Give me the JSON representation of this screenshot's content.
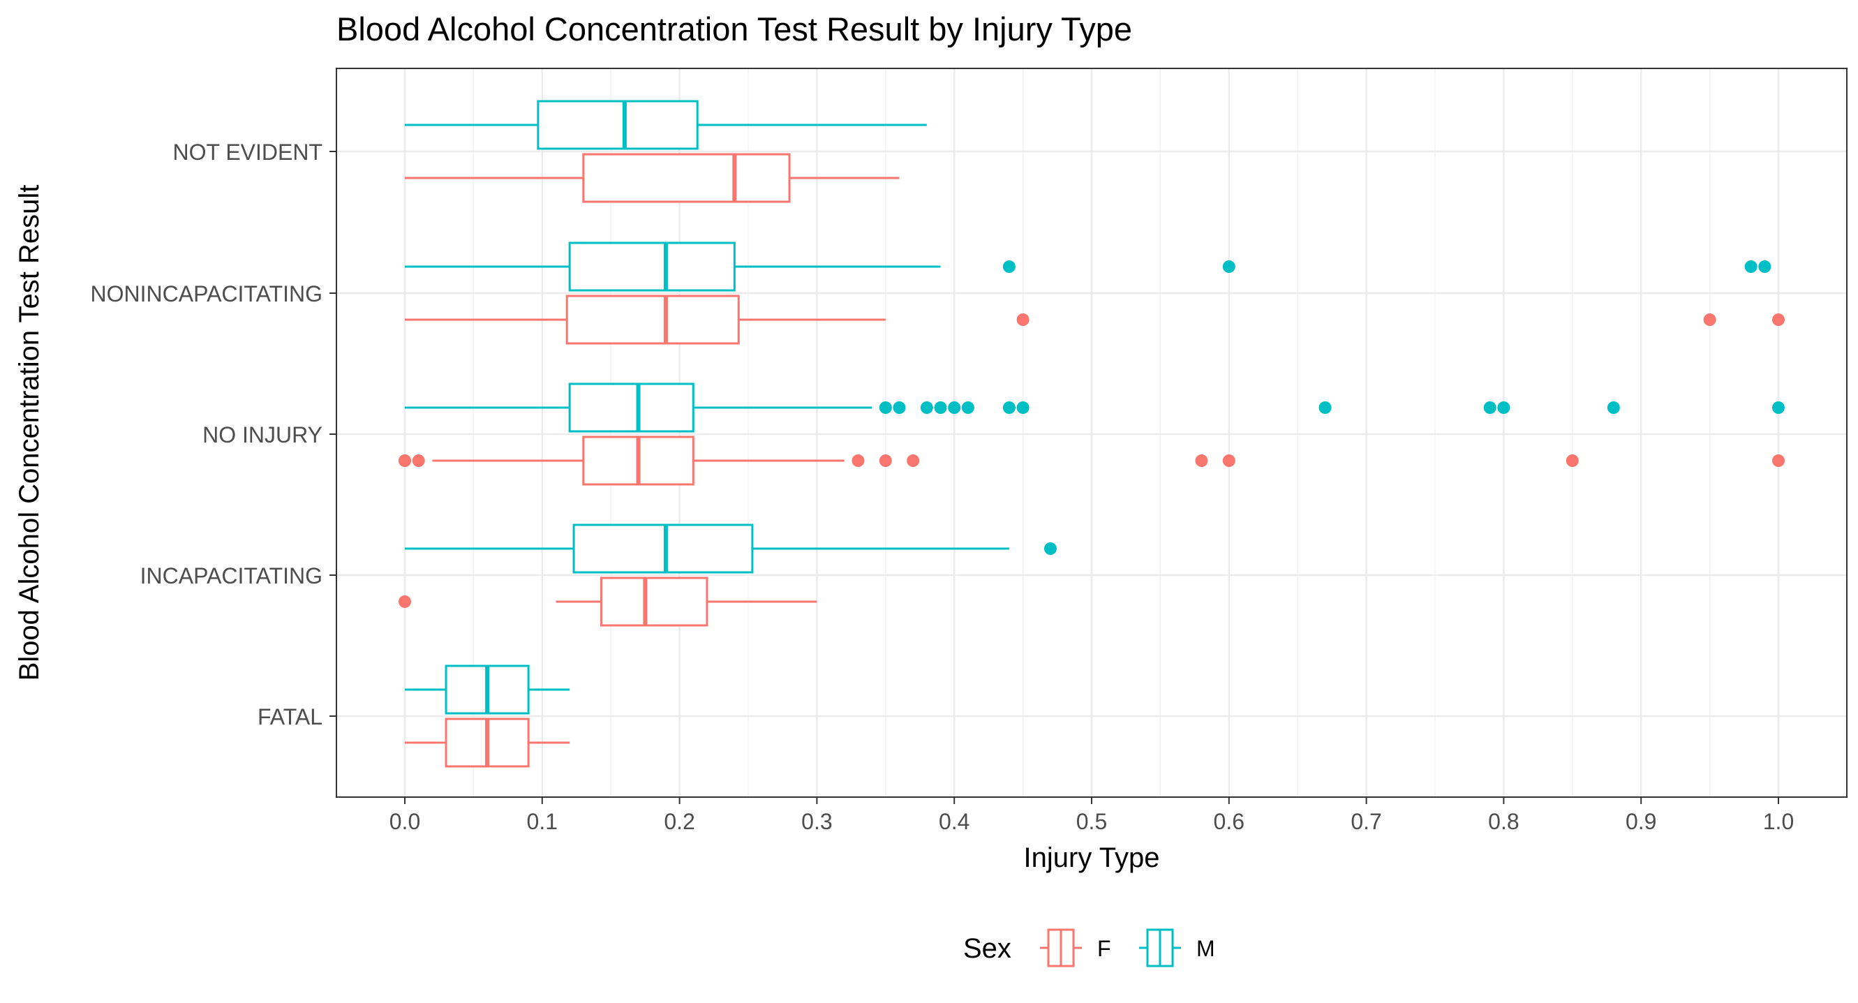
{
  "chart_data": {
    "type": "boxplot",
    "orientation": "horizontal",
    "title": "Blood Alcohol Concentration Test Result by Injury Type",
    "xlabel": "Injury Type",
    "ylabel": "Blood Alcohol Concentration Test Result",
    "xlim": [
      -0.05,
      1.05
    ],
    "xticks": [
      0.0,
      0.1,
      0.2,
      0.3,
      0.4,
      0.5,
      0.6,
      0.7,
      0.8,
      0.9,
      1.0
    ],
    "xtick_labels": [
      "0.0",
      "0.1",
      "0.2",
      "0.3",
      "0.4",
      "0.5",
      "0.6",
      "0.7",
      "0.8",
      "0.9",
      "1.0"
    ],
    "categories": [
      "NOT EVIDENT",
      "NONINCAPACITATING",
      "NO INJURY",
      "INCAPACITATING",
      "FATAL"
    ],
    "grid": true,
    "legend": {
      "title": "Sex",
      "position": "bottom",
      "entries": [
        "F",
        "M"
      ]
    },
    "colors": {
      "F": "#F8766D",
      "M": "#00BFC4"
    },
    "series": [
      {
        "name": "F",
        "boxes": [
          {
            "category": "NOT EVIDENT",
            "whisker_low": 0.0,
            "q1": 0.13,
            "median": 0.24,
            "q3": 0.28,
            "whisker_high": 0.36,
            "outliers": []
          },
          {
            "category": "NONINCAPACITATING",
            "whisker_low": 0.0,
            "q1": 0.118,
            "median": 0.19,
            "q3": 0.243,
            "whisker_high": 0.35,
            "outliers": [
              0.45,
              0.95,
              1.0
            ]
          },
          {
            "category": "NO INJURY",
            "whisker_low": 0.02,
            "q1": 0.13,
            "median": 0.17,
            "q3": 0.21,
            "whisker_high": 0.32,
            "outliers": [
              0.0,
              0.0,
              0.01,
              0.33,
              0.35,
              0.37,
              0.58,
              0.6,
              0.85,
              1.0
            ]
          },
          {
            "category": "INCAPACITATING",
            "whisker_low": 0.11,
            "q1": 0.143,
            "median": 0.175,
            "q3": 0.22,
            "whisker_high": 0.3,
            "outliers": [
              0.0
            ]
          },
          {
            "category": "FATAL",
            "whisker_low": 0.0,
            "q1": 0.03,
            "median": 0.06,
            "q3": 0.09,
            "whisker_high": 0.12,
            "outliers": []
          }
        ]
      },
      {
        "name": "M",
        "boxes": [
          {
            "category": "NOT EVIDENT",
            "whisker_low": 0.0,
            "q1": 0.097,
            "median": 0.16,
            "q3": 0.213,
            "whisker_high": 0.38,
            "outliers": []
          },
          {
            "category": "NONINCAPACITATING",
            "whisker_low": 0.0,
            "q1": 0.12,
            "median": 0.19,
            "q3": 0.24,
            "whisker_high": 0.39,
            "outliers": [
              0.44,
              0.6,
              0.98,
              0.99
            ]
          },
          {
            "category": "NO INJURY",
            "whisker_low": 0.0,
            "q1": 0.12,
            "median": 0.17,
            "q3": 0.21,
            "whisker_high": 0.34,
            "outliers": [
              0.35,
              0.36,
              0.38,
              0.39,
              0.4,
              0.41,
              0.44,
              0.45,
              0.67,
              0.79,
              0.8,
              0.88,
              1.0
            ]
          },
          {
            "category": "INCAPACITATING",
            "whisker_low": 0.0,
            "q1": 0.123,
            "median": 0.19,
            "q3": 0.253,
            "whisker_high": 0.44,
            "outliers": [
              0.47
            ]
          },
          {
            "category": "FATAL",
            "whisker_low": 0.0,
            "q1": 0.03,
            "median": 0.06,
            "q3": 0.09,
            "whisker_high": 0.12,
            "outliers": []
          }
        ]
      }
    ]
  }
}
